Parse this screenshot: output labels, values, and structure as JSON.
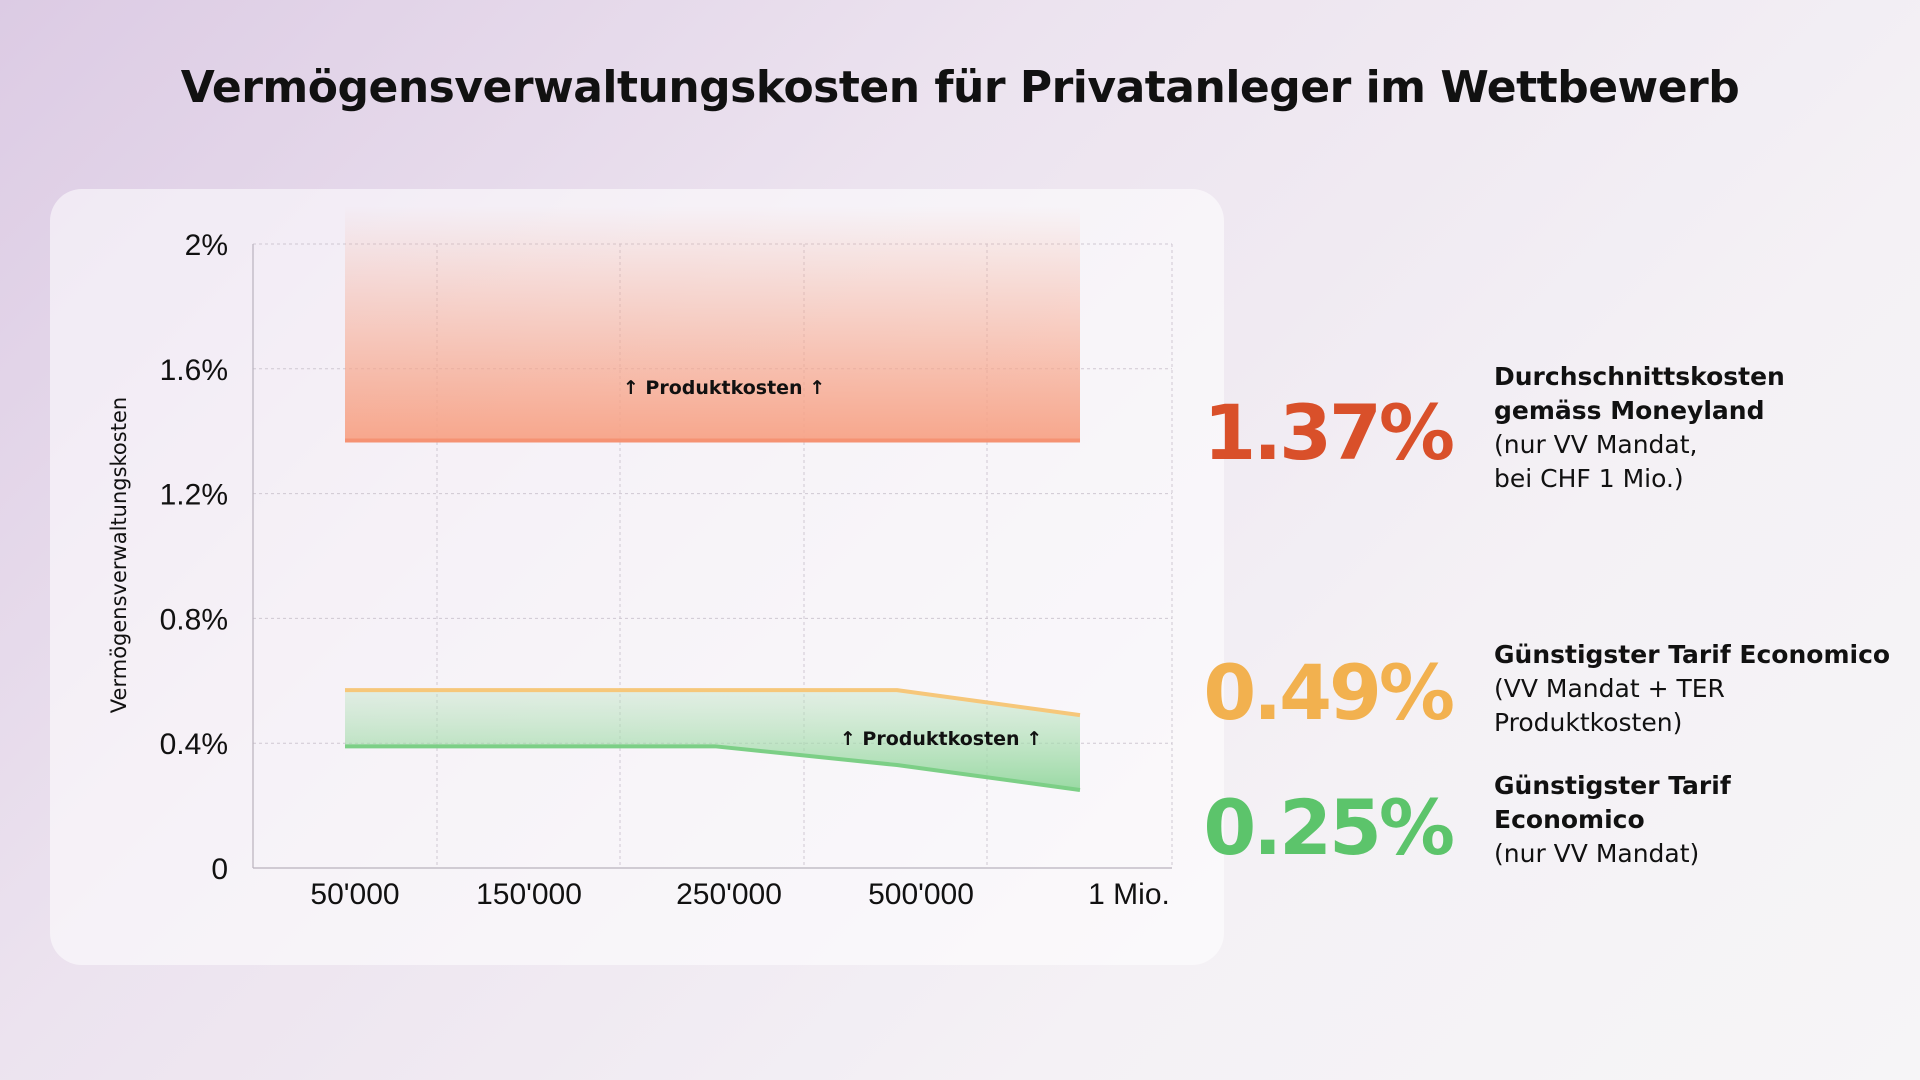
{
  "title": "Vermögensverwaltungskosten für Privatanleger im Wettbewerb",
  "colors": {
    "red": "#d9502a",
    "red_band": "#f7a387",
    "orange": "#f2b14f",
    "orange_line": "#f6c77a",
    "green": "#5cc46b",
    "green_line": "#7ccf86"
  },
  "chart_data": {
    "type": "area",
    "ylabel": "Vermögensverwaltungskosten",
    "xlabel": "",
    "categories": [
      "50'000",
      "150'000",
      "250'000",
      "500'000",
      "1 Mio."
    ],
    "y_ticks": [
      "0",
      "0.4%",
      "0.8%",
      "1.2%",
      "1.6%",
      "2%"
    ],
    "ylim": [
      0,
      2
    ],
    "grid": true,
    "series": [
      {
        "name": "Durchschnittskosten gemäss Moneyland",
        "values": [
          1.37,
          1.37,
          1.37,
          1.37,
          1.37
        ],
        "fill_to": 2.0
      },
      {
        "name": "Günstigster Tarif Economico (VV Mandat + TER Produktkosten)",
        "values": [
          0.57,
          0.57,
          0.57,
          0.57,
          0.49
        ]
      },
      {
        "name": "Günstigster Tarif Economico (nur VV Mandat)",
        "values": [
          0.39,
          0.39,
          0.39,
          0.33,
          0.25
        ]
      }
    ],
    "annotations": [
      "↑ Produktkosten ↑",
      "↑ Produktkosten ↑"
    ]
  },
  "stats": [
    {
      "value": "1.37%",
      "heading": "Durchschnittskosten\ngemäss Moneyland",
      "body": "(nur VV Mandat,\nbei CHF 1 Mio.)"
    },
    {
      "value": "0.49%",
      "heading": "Günstigster Tarif Economico",
      "body": "(VV Mandat + TER\nProduktkosten)"
    },
    {
      "value": "0.25%",
      "heading": "Günstigster Tarif\nEconomico",
      "body": "(nur VV Mandat)"
    }
  ]
}
